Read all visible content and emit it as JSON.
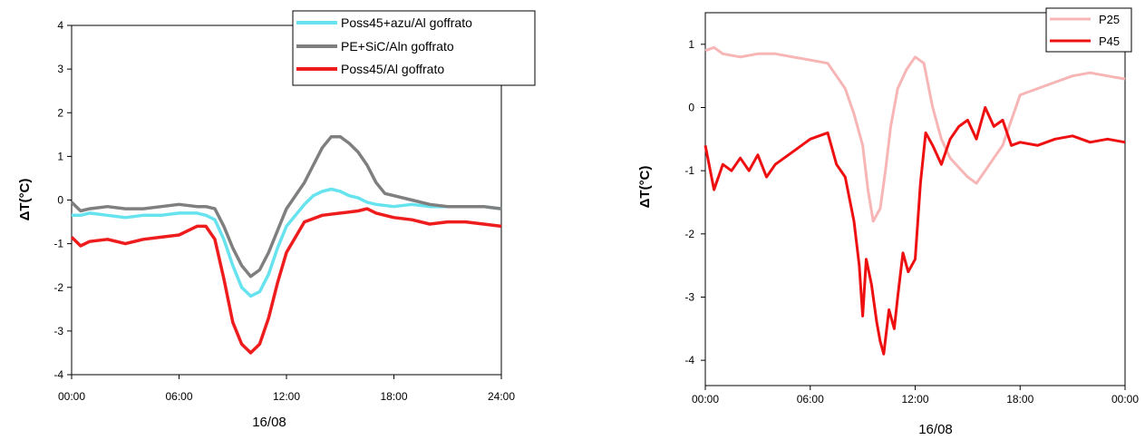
{
  "chart_data": [
    {
      "type": "line",
      "xlabel": "16/08",
      "ylabel": "ΔT(°C)",
      "xlim": [
        0,
        24
      ],
      "ylim": [
        -4,
        4
      ],
      "xticks": [
        0,
        6,
        12,
        18,
        24
      ],
      "xtick_labels": [
        "00:00",
        "06:00",
        "12:00",
        "18:00",
        "24:00"
      ],
      "yticks": [
        -4,
        -3,
        -2,
        -1,
        0,
        1,
        2,
        3,
        4
      ],
      "ytick_labels": [
        "-4",
        "-3",
        "-2",
        "-1",
        "0",
        "1",
        "2",
        "3",
        "4"
      ],
      "legend_position": "top-right",
      "series": [
        {
          "name": "Poss45+azu/Al goffrato",
          "color": "#66e3ee",
          "x": [
            0,
            0.5,
            1,
            2,
            3,
            4,
            5,
            6,
            7,
            7.5,
            8,
            8.5,
            9,
            9.5,
            10,
            10.5,
            11,
            11.5,
            12,
            13,
            13.5,
            14,
            14.5,
            15,
            15.5,
            16,
            16.5,
            17,
            18,
            19,
            20,
            21,
            22,
            23,
            24
          ],
          "y": [
            -0.35,
            -0.35,
            -0.3,
            -0.35,
            -0.4,
            -0.35,
            -0.35,
            -0.3,
            -0.3,
            -0.35,
            -0.45,
            -0.9,
            -1.5,
            -2.0,
            -2.2,
            -2.1,
            -1.7,
            -1.1,
            -0.6,
            -0.1,
            0.1,
            0.2,
            0.25,
            0.2,
            0.1,
            0.05,
            -0.05,
            -0.1,
            -0.15,
            -0.1,
            -0.15,
            -0.15,
            -0.15,
            -0.15,
            -0.2
          ]
        },
        {
          "name": "PE+SiC/Aln goffrato",
          "color": "#7f7f7f",
          "x": [
            0,
            0.5,
            1,
            2,
            3,
            4,
            5,
            6,
            7,
            7.5,
            8,
            8.5,
            9,
            9.5,
            10,
            10.5,
            11,
            11.5,
            12,
            13,
            13.5,
            14,
            14.5,
            15,
            15.5,
            16,
            16.5,
            17,
            17.5,
            18,
            19,
            20,
            21,
            22,
            23,
            24
          ],
          "y": [
            -0.05,
            -0.25,
            -0.2,
            -0.15,
            -0.2,
            -0.2,
            -0.15,
            -0.1,
            -0.15,
            -0.15,
            -0.2,
            -0.6,
            -1.1,
            -1.5,
            -1.75,
            -1.6,
            -1.2,
            -0.7,
            -0.2,
            0.4,
            0.8,
            1.2,
            1.45,
            1.45,
            1.3,
            1.1,
            0.8,
            0.4,
            0.15,
            0.1,
            0.0,
            -0.1,
            -0.15,
            -0.15,
            -0.15,
            -0.2
          ]
        },
        {
          "name": "Poss45/Al goffrato",
          "color": "#ee1c1c",
          "x": [
            0,
            0.5,
            1,
            2,
            3,
            4,
            5,
            6,
            7,
            7.5,
            8,
            8.5,
            9,
            9.5,
            10,
            10.5,
            11,
            11.5,
            12,
            13,
            14,
            15,
            16,
            16.5,
            17,
            18,
            19,
            20,
            21,
            22,
            23,
            24
          ],
          "y": [
            -0.85,
            -1.05,
            -0.95,
            -0.9,
            -1.0,
            -0.9,
            -0.85,
            -0.8,
            -0.6,
            -0.6,
            -0.9,
            -1.8,
            -2.8,
            -3.3,
            -3.5,
            -3.3,
            -2.7,
            -1.9,
            -1.2,
            -0.5,
            -0.35,
            -0.3,
            -0.25,
            -0.2,
            -0.3,
            -0.4,
            -0.45,
            -0.55,
            -0.5,
            -0.5,
            -0.55,
            -0.6
          ]
        }
      ]
    },
    {
      "type": "line",
      "xlabel": "16/08",
      "ylabel": "ΔT(°C)",
      "xlim": [
        0,
        24
      ],
      "ylim": [
        -4.4,
        1.5
      ],
      "xticks": [
        0,
        6,
        12,
        18,
        24
      ],
      "xtick_labels": [
        "00:00",
        "06:00",
        "12:00",
        "18:00",
        "00:00"
      ],
      "yticks": [
        -4,
        -3,
        -2,
        -1,
        0,
        1
      ],
      "ytick_labels": [
        "-4",
        "-3",
        "-2",
        "-1",
        "0",
        "1"
      ],
      "legend_position": "top-right",
      "series": [
        {
          "name": "P25",
          "color": "#f7b5b5",
          "x": [
            0,
            0.5,
            1,
            2,
            3,
            4,
            5,
            6,
            7,
            7.5,
            8,
            8.5,
            9,
            9.3,
            9.6,
            10,
            10.3,
            10.6,
            11,
            11.5,
            12,
            12.5,
            13,
            13.5,
            14,
            14.5,
            15,
            15.5,
            16,
            16.5,
            17,
            17.5,
            18,
            19,
            20,
            21,
            22,
            23,
            24
          ],
          "y": [
            0.9,
            0.95,
            0.85,
            0.8,
            0.85,
            0.85,
            0.8,
            0.75,
            0.7,
            0.5,
            0.3,
            -0.1,
            -0.6,
            -1.3,
            -1.8,
            -1.6,
            -1.0,
            -0.3,
            0.3,
            0.6,
            0.8,
            0.7,
            0.0,
            -0.5,
            -0.8,
            -0.95,
            -1.1,
            -1.2,
            -1.0,
            -0.8,
            -0.6,
            -0.2,
            0.2,
            0.3,
            0.4,
            0.5,
            0.55,
            0.5,
            0.45
          ]
        },
        {
          "name": "P45",
          "color": "#ee1010",
          "x": [
            0,
            0.5,
            1,
            1.5,
            2,
            2.5,
            3,
            3.5,
            4,
            5,
            6,
            6.5,
            7,
            7.5,
            8,
            8.5,
            8.8,
            9.0,
            9.2,
            9.5,
            9.8,
            10.0,
            10.2,
            10.5,
            10.8,
            11.0,
            11.3,
            11.6,
            12.0,
            12.3,
            12.6,
            13.0,
            13.5,
            14,
            14.5,
            15,
            15.5,
            16,
            16.5,
            17,
            17.5,
            18,
            19,
            20,
            21,
            22,
            23,
            24
          ],
          "y": [
            -0.6,
            -1.3,
            -0.9,
            -1.0,
            -0.8,
            -1.0,
            -0.75,
            -1.1,
            -0.9,
            -0.7,
            -0.5,
            -0.45,
            -0.4,
            -0.9,
            -1.1,
            -1.8,
            -2.5,
            -3.3,
            -2.4,
            -2.8,
            -3.4,
            -3.7,
            -3.9,
            -3.2,
            -3.5,
            -3.0,
            -2.3,
            -2.6,
            -2.4,
            -1.2,
            -0.4,
            -0.6,
            -0.9,
            -0.5,
            -0.3,
            -0.2,
            -0.5,
            0.0,
            -0.3,
            -0.2,
            -0.6,
            -0.55,
            -0.6,
            -0.5,
            -0.45,
            -0.55,
            -0.5,
            -0.55
          ]
        }
      ]
    }
  ]
}
